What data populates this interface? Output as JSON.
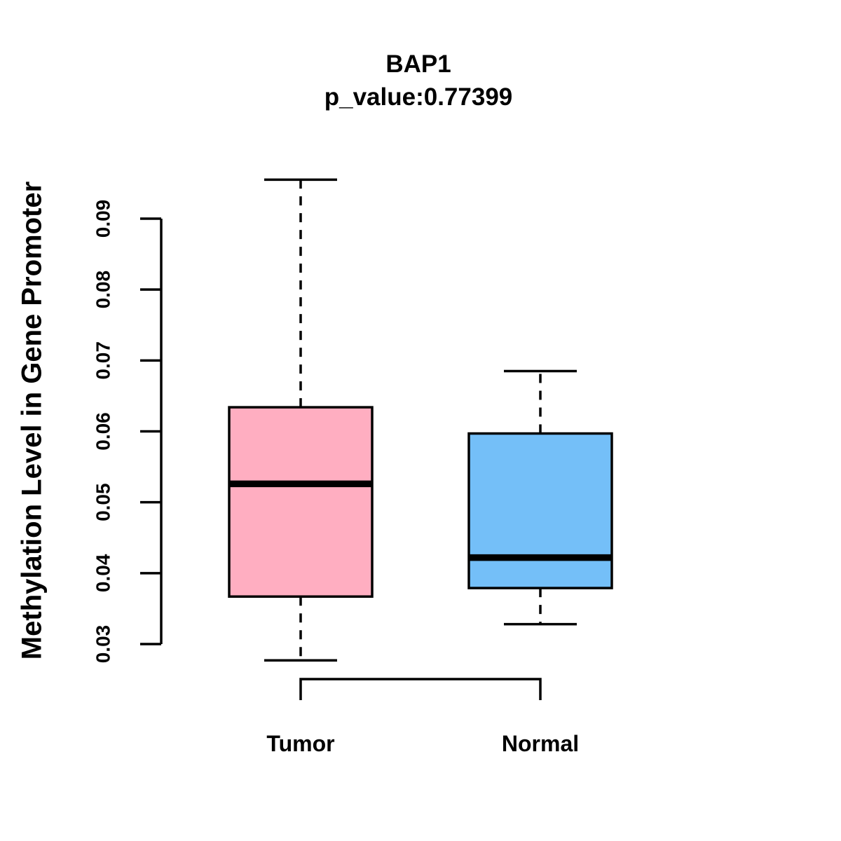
{
  "chart_data": {
    "type": "boxplot",
    "title": "BAP1",
    "subtitle": "p_value:0.77399",
    "p_value_label": "p_value:0.77399",
    "ylabel": "Methylation Level in Gene Promoter",
    "xlabel": "",
    "categories": [
      "Tumor",
      "Normal"
    ],
    "yticks": [
      0.03,
      0.04,
      0.05,
      0.06,
      0.07,
      0.08,
      0.09
    ],
    "ytick_labels": [
      "0.03",
      "0.04",
      "0.05",
      "0.06",
      "0.07",
      "0.08",
      "0.09"
    ],
    "ylim": [
      0.0277,
      0.0955
    ],
    "grid": false,
    "legend": "none",
    "series": [
      {
        "name": "Tumor",
        "lower_whisker": 0.0277,
        "q1": 0.0367,
        "median": 0.0526,
        "q3": 0.0634,
        "upper_whisker": 0.0955,
        "fill_color": "#FFAEC1"
      },
      {
        "name": "Normal",
        "lower_whisker": 0.0328,
        "q1": 0.0379,
        "median": 0.0422,
        "q3": 0.0597,
        "upper_whisker": 0.0685,
        "fill_color": "#74BFF8"
      }
    ],
    "comparison_bracket": {
      "connects": [
        "Tumor",
        "Normal"
      ],
      "direction": "down"
    },
    "colors": {
      "tumor_fill": "#FFAEC1",
      "normal_fill": "#74BFF8",
      "line": "#000000",
      "background": "#FFFFFF"
    }
  }
}
